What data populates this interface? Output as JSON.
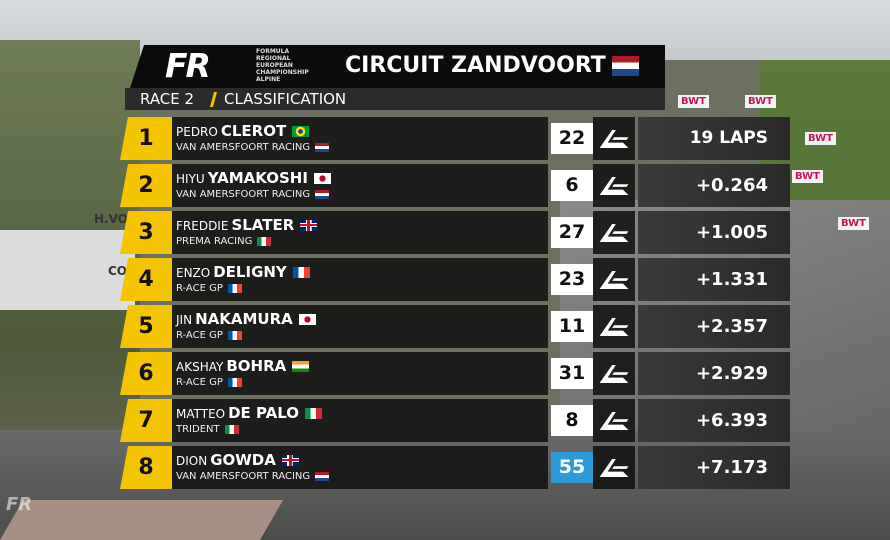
{
  "background": {
    "signs": [
      "BWT",
      "BWT",
      "BWT",
      "BWT",
      "BWT"
    ],
    "truck_texts": [
      "H.VO",
      "CO"
    ]
  },
  "header": {
    "logo": "FR",
    "logo_lines": [
      "FORMULA",
      "REGIONAL",
      "EUROPEAN",
      "CHAMPIONSHIP",
      "ALPINE"
    ],
    "title": "CIRCUIT ZANDVOORT",
    "session": "RACE 2",
    "subtitle": "CLASSIFICATION"
  },
  "table": {
    "rows": [
      {
        "position": 1,
        "first_name": "PEDRO",
        "last_name": "CLEROT",
        "team": "VAN AMERSFOORT RACING",
        "number": 22,
        "gap": "19 LAPS"
      },
      {
        "position": 2,
        "first_name": "HIYU",
        "last_name": "YAMAKOSHI",
        "team": "VAN AMERSFOORT RACING",
        "number": 6,
        "gap": "+0.264"
      },
      {
        "position": 3,
        "first_name": "FREDDIE",
        "last_name": "SLATER",
        "team": "PREMA RACING",
        "number": 27,
        "gap": "+1.005"
      },
      {
        "position": 4,
        "first_name": "ENZO",
        "last_name": "DELIGNY",
        "team": "R-ACE GP",
        "number": 23,
        "gap": "+1.331"
      },
      {
        "position": 5,
        "first_name": "JIN",
        "last_name": "NAKAMURA",
        "team": "R-ACE GP",
        "number": 11,
        "gap": "+2.357"
      },
      {
        "position": 6,
        "first_name": "AKSHAY",
        "last_name": "BOHRA",
        "team": "R-ACE GP",
        "number": 31,
        "gap": "+2.929"
      },
      {
        "position": 7,
        "first_name": "MATTEO",
        "last_name": "DE PALO",
        "team": "TRIDENT",
        "number": 8,
        "gap": "+6.393"
      },
      {
        "position": 8,
        "first_name": "DION",
        "last_name": "GOWDA",
        "team": "VAN AMERSFOORT RACING",
        "number": 55,
        "gap": "+7.173"
      }
    ]
  }
}
